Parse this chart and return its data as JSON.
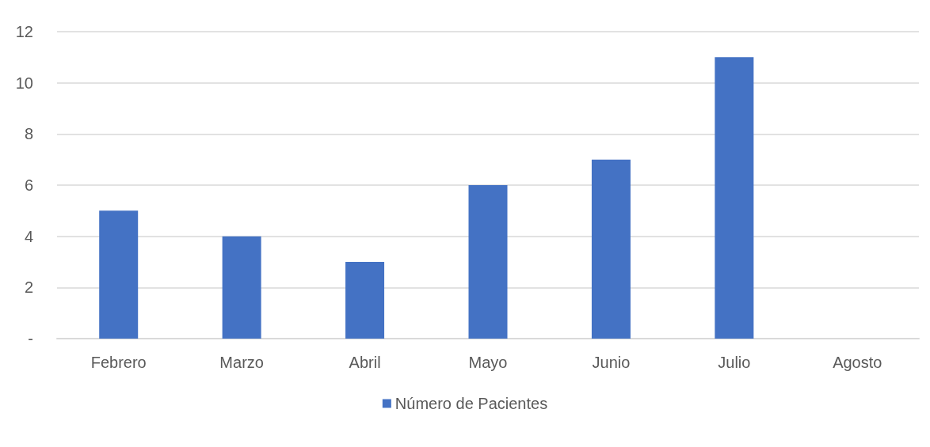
{
  "chart_data": {
    "type": "bar",
    "categories": [
      "Febrero",
      "Marzo",
      "Abril",
      "Mayo",
      "Junio",
      "Julio",
      "Agosto"
    ],
    "series": [
      {
        "name": "Número de Pacientes",
        "color": "#4472c4",
        "values": [
          5,
          4,
          3,
          6,
          7,
          11,
          0
        ]
      }
    ],
    "ylim": [
      0,
      12
    ],
    "yticks": [
      {
        "value": 0,
        "label": "-"
      },
      2,
      4,
      6,
      8,
      10,
      12
    ],
    "grid": "y",
    "legend": "bottom"
  }
}
